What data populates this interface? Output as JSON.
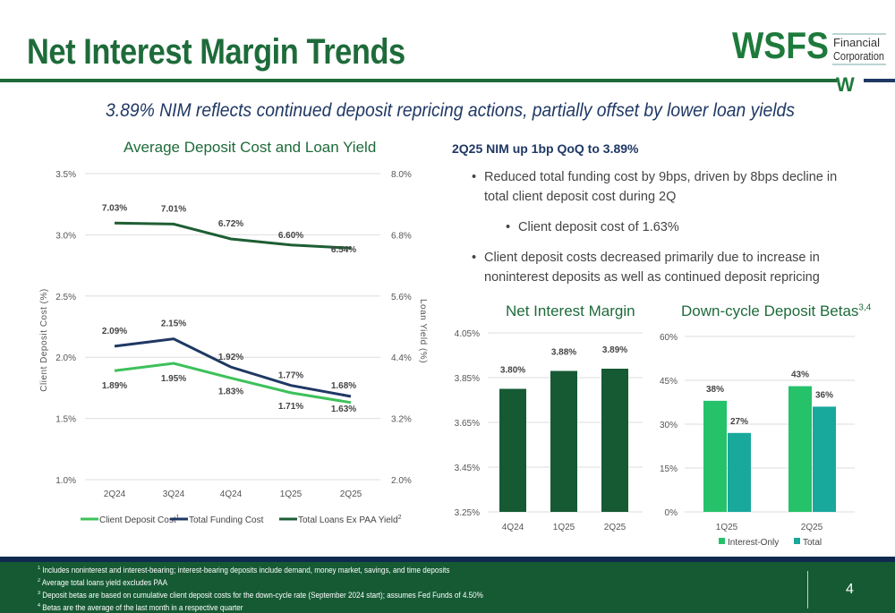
{
  "header": {
    "title": "Net Interest Margin Trends",
    "logo_text": "WSFS",
    "logo_sub1": "Financial",
    "logo_sub2": "Corporation",
    "logo_mark": "W"
  },
  "subtitle": "3.89% NIM reflects continued deposit repricing actions, partially offset by lower loan yields",
  "right_panel": {
    "heading": "2Q25 NIM up 1bp QoQ to 3.89%",
    "bullets": [
      "Reduced total funding cost by 9bps, driven by 8bps decline in total client deposit cost during 2Q",
      "Client deposit cost of 1.63%",
      "Client deposit costs decreased primarily due to increase in noninterest deposits as well as continued deposit repricing"
    ]
  },
  "colors": {
    "client_deposit": "#3cc15a",
    "total_funding": "#1f3864",
    "loans": "#1d5e33",
    "nim_bar": "#165a34",
    "interest_only": "#25c26a",
    "total": "#19a89c"
  },
  "chart_data": [
    {
      "type": "line",
      "title": "Average Deposit Cost and Loan Yield",
      "ylabel": "Client Deposit Cost (%)",
      "y2label": "Loan Yield (%)",
      "categories": [
        "2Q24",
        "3Q24",
        "4Q24",
        "1Q25",
        "2Q25"
      ],
      "ylim": [
        1.0,
        3.5
      ],
      "yticks": [
        "1.0%",
        "1.5%",
        "2.0%",
        "2.5%",
        "3.0%",
        "3.5%"
      ],
      "y2lim": [
        2.0,
        8.0
      ],
      "y2ticks": [
        "2.0%",
        "3.2%",
        "4.4%",
        "5.6%",
        "6.8%",
        "8.0%"
      ],
      "series": [
        {
          "name": "Client Deposit Cost",
          "sup": "1",
          "axis": "left",
          "values": [
            1.89,
            1.95,
            1.83,
            1.71,
            1.63
          ],
          "labels": [
            "1.89%",
            "1.95%",
            "1.83%",
            "1.71%",
            "1.63%"
          ]
        },
        {
          "name": "Total Funding Cost",
          "axis": "left",
          "values": [
            2.09,
            2.15,
            1.92,
            1.77,
            1.68
          ],
          "labels": [
            "2.09%",
            "2.15%",
            "1.92%",
            "1.77%",
            "1.68%"
          ]
        },
        {
          "name": "Total Loans Ex PAA Yield",
          "sup": "2",
          "axis": "right",
          "values": [
            7.03,
            7.01,
            6.72,
            6.6,
            6.54
          ],
          "labels": [
            "7.03%",
            "7.01%",
            "6.72%",
            "6.60%",
            "6.54%"
          ]
        }
      ],
      "legend": "bottom",
      "grid": true
    },
    {
      "type": "bar",
      "title": "Net Interest Margin",
      "categories": [
        "4Q24",
        "1Q25",
        "2Q25"
      ],
      "values": [
        3.8,
        3.88,
        3.89
      ],
      "labels": [
        "3.80%",
        "3.88%",
        "3.89%"
      ],
      "ylim": [
        3.25,
        4.05
      ],
      "yticks": [
        "3.25%",
        "3.45%",
        "3.65%",
        "3.85%",
        "4.05%"
      ],
      "grid": true
    },
    {
      "type": "bar",
      "title": "Down-cycle Deposit Betas",
      "title_sup": "3,4",
      "categories": [
        "1Q25",
        "2Q25"
      ],
      "series": [
        {
          "name": "Interest-Only",
          "values": [
            38,
            43
          ],
          "labels": [
            "38%",
            "43%"
          ]
        },
        {
          "name": "Total",
          "values": [
            27,
            36
          ],
          "labels": [
            "27%",
            "36%"
          ]
        }
      ],
      "ylim": [
        0,
        60
      ],
      "yticks": [
        "0%",
        "15%",
        "30%",
        "45%",
        "60%"
      ],
      "legend": "bottom",
      "grid": true
    }
  ],
  "footnotes": [
    {
      "sup": "1",
      "text": "Includes noninterest and interest-bearing; interest-bearing deposits include demand, money market, savings, and time deposits"
    },
    {
      "sup": "2",
      "text": "Average total loans yield excludes PAA"
    },
    {
      "sup": "3",
      "text": "Deposit betas are based on cumulative client deposit costs for the down-cycle rate (September 2024 start); assumes Fed Funds of 4.50%"
    },
    {
      "sup": "4",
      "text": "Betas are the average of the last month in a respective quarter"
    }
  ],
  "page_number": "4"
}
